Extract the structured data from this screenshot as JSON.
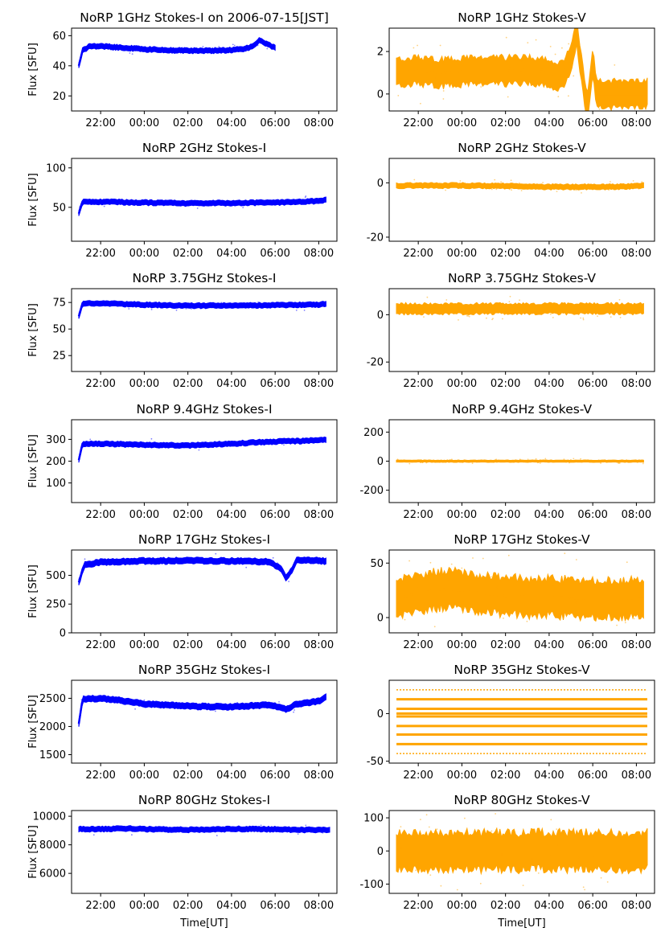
{
  "figure": {
    "xlabel": "Time[UT]",
    "ylabel": "Flux [SFU]",
    "xtick_labels": [
      "22:00",
      "00:00",
      "02:00",
      "04:00",
      "06:00",
      "08:00"
    ]
  },
  "chart_data": [
    {
      "id": "i1",
      "type": "scatter",
      "title": "NoRP 1GHz Stokes-I on 2006-07-15[JST]",
      "ylabel": "Flux [SFU]",
      "xlabel": "",
      "color": "#0000ff",
      "x_range": [
        "20:40",
        "08:50"
      ],
      "y_range": [
        10,
        65
      ],
      "yticks": [
        20,
        40,
        60
      ],
      "x": [
        "21:00",
        "21:10",
        "21:30",
        "22:00",
        "23:00",
        "00:00",
        "01:00",
        "02:00",
        "03:00",
        "04:00",
        "04:30",
        "05:00",
        "05:15",
        "05:40",
        "06:00"
      ],
      "values": [
        40,
        50,
        53,
        53,
        52,
        51,
        50.5,
        50,
        50,
        50.5,
        51,
        53,
        57,
        54,
        52
      ]
    },
    {
      "id": "v1",
      "type": "scatter",
      "title": "NoRP 1GHz Stokes-V",
      "ylabel": "",
      "xlabel": "",
      "color": "#ffa500",
      "x_range": [
        "20:40",
        "08:50"
      ],
      "y_range": [
        -0.8,
        3.1
      ],
      "yticks": [
        0,
        2
      ],
      "x": [
        "21:00",
        "22:00",
        "23:00",
        "00:00",
        "01:00",
        "02:00",
        "03:00",
        "04:00",
        "04:30",
        "05:00",
        "05:15",
        "05:30",
        "05:45",
        "06:00",
        "06:10",
        "07:00",
        "08:30"
      ],
      "values": [
        1.0,
        1.1,
        1.0,
        1.05,
        1.1,
        1.1,
        1.15,
        1.0,
        0.8,
        1.5,
        3.0,
        1.0,
        -0.7,
        1.6,
        0,
        0,
        0
      ]
    },
    {
      "id": "i2",
      "type": "scatter",
      "title": "NoRP 2GHz Stokes-I",
      "ylabel": "Flux [SFU]",
      "xlabel": "",
      "color": "#0000ff",
      "x_range": [
        "20:40",
        "08:50"
      ],
      "y_range": [
        7,
        112
      ],
      "yticks": [
        50,
        100
      ],
      "x": [
        "21:00",
        "21:10",
        "22:00",
        "00:00",
        "02:00",
        "04:00",
        "06:00",
        "07:00",
        "08:00",
        "08:20"
      ],
      "values": [
        42,
        57,
        57,
        56,
        55,
        55.5,
        56,
        57,
        58,
        60
      ]
    },
    {
      "id": "v2",
      "type": "scatter",
      "title": "NoRP 2GHz Stokes-V",
      "ylabel": "",
      "xlabel": "",
      "color": "#ffa500",
      "x_range": [
        "20:40",
        "08:50"
      ],
      "y_range": [
        -21.5,
        9
      ],
      "yticks": [
        -20,
        0
      ],
      "x": [
        "21:00",
        "22:00",
        "00:00",
        "02:00",
        "04:00",
        "06:00",
        "07:00",
        "08:00",
        "08:20"
      ],
      "values": [
        -1.0,
        -1.0,
        -1.0,
        -1.2,
        -1.5,
        -1.5,
        -1.5,
        -1.2,
        -1.0
      ]
    },
    {
      "id": "i3",
      "type": "scatter",
      "title": "NoRP 3.75GHz Stokes-I",
      "ylabel": "Flux [SFU]",
      "xlabel": "",
      "color": "#0000ff",
      "x_range": [
        "20:40",
        "08:50"
      ],
      "y_range": [
        10,
        88
      ],
      "yticks": [
        25,
        50,
        75
      ],
      "x": [
        "21:00",
        "21:10",
        "22:00",
        "00:00",
        "02:00",
        "04:00",
        "06:00",
        "08:00",
        "08:20"
      ],
      "values": [
        62,
        74,
        74,
        73,
        72,
        72,
        72.5,
        73,
        74
      ]
    },
    {
      "id": "v3",
      "type": "scatter",
      "title": "NoRP 3.75GHz Stokes-V",
      "ylabel": "",
      "xlabel": "",
      "color": "#ffa500",
      "x_range": [
        "20:40",
        "08:50"
      ],
      "y_range": [
        -24,
        11
      ],
      "yticks": [
        -20,
        0
      ],
      "x": [
        "21:00",
        "22:00",
        "00:00",
        "02:00",
        "04:00",
        "06:00",
        "08:00",
        "08:20"
      ],
      "values": [
        2.5,
        2.5,
        2.5,
        2.5,
        2.5,
        2.5,
        2.5,
        2.5
      ]
    },
    {
      "id": "i4",
      "type": "scatter",
      "title": "NoRP 9.4GHz Stokes-I",
      "ylabel": "Flux [SFU]",
      "xlabel": "",
      "color": "#0000ff",
      "x_range": [
        "20:40",
        "08:50"
      ],
      "y_range": [
        10,
        390
      ],
      "yticks": [
        100,
        200,
        300
      ],
      "x": [
        "21:00",
        "21:10",
        "22:00",
        "00:00",
        "02:00",
        "04:00",
        "05:00",
        "06:00",
        "07:00",
        "08:00",
        "08:20"
      ],
      "values": [
        205,
        280,
        280,
        275,
        272,
        280,
        285,
        290,
        292,
        295,
        300
      ]
    },
    {
      "id": "v4",
      "type": "scatter",
      "title": "NoRP 9.4GHz Stokes-V",
      "ylabel": "",
      "xlabel": "",
      "color": "#ffa500",
      "x_range": [
        "20:40",
        "08:50"
      ],
      "y_range": [
        -285,
        285
      ],
      "yticks": [
        -200,
        0,
        200
      ],
      "x": [
        "21:00",
        "22:00",
        "00:00",
        "02:00",
        "04:00",
        "06:00",
        "08:00",
        "08:20"
      ],
      "values": [
        0,
        0,
        0,
        0,
        0,
        0,
        0,
        0
      ]
    },
    {
      "id": "i5",
      "type": "scatter",
      "title": "NoRP 17GHz Stokes-I",
      "ylabel": "Flux [SFU]",
      "xlabel": "",
      "color": "#0000ff",
      "x_range": [
        "20:40",
        "08:50"
      ],
      "y_range": [
        0,
        720
      ],
      "yticks": [
        0,
        250,
        500
      ],
      "x": [
        "21:00",
        "21:15",
        "22:00",
        "23:00",
        "00:00",
        "01:00",
        "02:00",
        "03:00",
        "04:00",
        "05:00",
        "05:45",
        "06:15",
        "06:30",
        "06:45",
        "07:00",
        "08:00",
        "08:20"
      ],
      "values": [
        440,
        590,
        615,
        620,
        625,
        625,
        628,
        625,
        625,
        620,
        620,
        560,
        480,
        540,
        635,
        630,
        620
      ]
    },
    {
      "id": "v5",
      "type": "scatter",
      "title": "NoRP 17GHz Stokes-V",
      "ylabel": "",
      "xlabel": "",
      "color": "#ffa500",
      "x_range": [
        "20:40",
        "08:50"
      ],
      "y_range": [
        -14,
        62
      ],
      "yticks": [
        0,
        50
      ],
      "x": [
        "21:00",
        "22:00",
        "23:00",
        "00:00",
        "01:00",
        "02:00",
        "03:00",
        "04:00",
        "05:00",
        "06:00",
        "07:00",
        "08:00",
        "08:20"
      ],
      "values": [
        18,
        22,
        26,
        25,
        22,
        20,
        19,
        19,
        18,
        17,
        17,
        18,
        18
      ]
    },
    {
      "id": "i6",
      "type": "scatter",
      "title": "NoRP 35GHz Stokes-I",
      "ylabel": "Flux [SFU]",
      "xlabel": "",
      "color": "#0000ff",
      "x_range": [
        "20:40",
        "08:50"
      ],
      "y_range": [
        1350,
        2820
      ],
      "yticks": [
        1500,
        2000,
        2500
      ],
      "x": [
        "21:00",
        "21:10",
        "22:00",
        "23:00",
        "00:00",
        "01:00",
        "02:00",
        "03:00",
        "04:00",
        "05:00",
        "05:30",
        "06:00",
        "06:30",
        "07:00",
        "08:00",
        "08:20"
      ],
      "values": [
        2050,
        2480,
        2500,
        2460,
        2400,
        2380,
        2360,
        2350,
        2350,
        2370,
        2380,
        2360,
        2300,
        2400,
        2450,
        2520
      ]
    },
    {
      "id": "v6",
      "type": "scatter",
      "title": "NoRP 35GHz Stokes-V",
      "ylabel": "",
      "xlabel": "",
      "color": "#ffa500",
      "x_range": [
        "20:40",
        "08:50"
      ],
      "y_range": [
        -52,
        35
      ],
      "yticks": [
        -50,
        0
      ],
      "levels": [
        25,
        15,
        5,
        0,
        -3,
        -13,
        -22,
        -32,
        -42
      ]
    },
    {
      "id": "i7",
      "type": "scatter",
      "title": "NoRP 80GHz Stokes-I",
      "ylabel": "Flux [SFU]",
      "xlabel": "",
      "color": "#0000ff",
      "x_range": [
        "20:40",
        "08:50"
      ],
      "y_range": [
        4600,
        10400
      ],
      "yticks": [
        6000,
        8000,
        10000
      ],
      "x": [
        "21:00",
        "22:00",
        "23:00",
        "00:00",
        "02:00",
        "04:00",
        "05:00",
        "06:00",
        "07:00",
        "08:00",
        "08:30"
      ],
      "values": [
        9100,
        9100,
        9150,
        9100,
        9050,
        9100,
        9120,
        9080,
        9050,
        9050,
        9050
      ]
    },
    {
      "id": "v7",
      "type": "scatter",
      "title": "NoRP 80GHz Stokes-V",
      "ylabel": "",
      "xlabel": "Time[UT]",
      "color": "#ffa500",
      "x_range": [
        "20:40",
        "08:50"
      ],
      "y_range": [
        -128,
        122
      ],
      "yticks": [
        -100,
        0,
        100
      ],
      "x": [
        "21:00",
        "22:00",
        "00:00",
        "02:00",
        "04:00",
        "06:00",
        "08:00",
        "08:30"
      ],
      "values": [
        0,
        0,
        0,
        0,
        0,
        0,
        0,
        0
      ]
    }
  ]
}
